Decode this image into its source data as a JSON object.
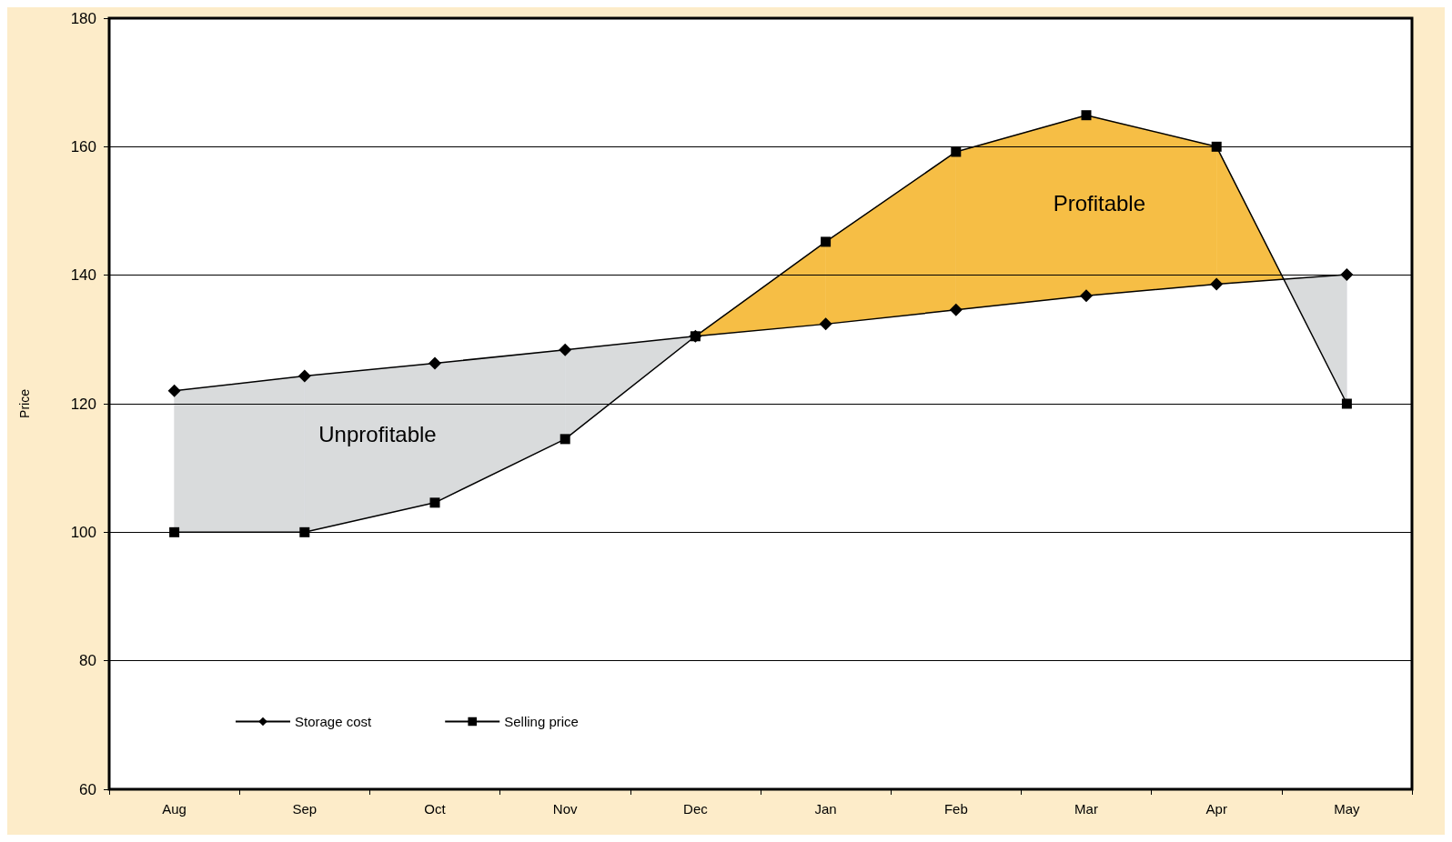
{
  "chart_data": {
    "type": "line",
    "ylabel": "Price",
    "categories": [
      "Aug",
      "Sep",
      "Oct",
      "Nov",
      "Dec",
      "Jan",
      "Feb",
      "Mar",
      "Apr",
      "May"
    ],
    "series": [
      {
        "name": "Storage cost",
        "color": "#000000",
        "marker": "diamond",
        "values": [
          122,
          124.3,
          126.3,
          128.4,
          130.5,
          132.4,
          134.6,
          136.8,
          138.6,
          140.1
        ]
      },
      {
        "name": "Selling price",
        "color": "#000000",
        "marker": "square",
        "values": [
          100,
          100,
          104.6,
          114.5,
          130.5,
          145.2,
          159.2,
          164.9,
          160,
          120
        ]
      }
    ],
    "ylim": [
      60,
      180
    ],
    "yticks": [
      60,
      80,
      100,
      120,
      140,
      160,
      180
    ],
    "grid": "y",
    "legend": "bottom left",
    "line_style": "solid",
    "annotations": [
      "Unprofitable",
      "Profitable"
    ]
  }
}
